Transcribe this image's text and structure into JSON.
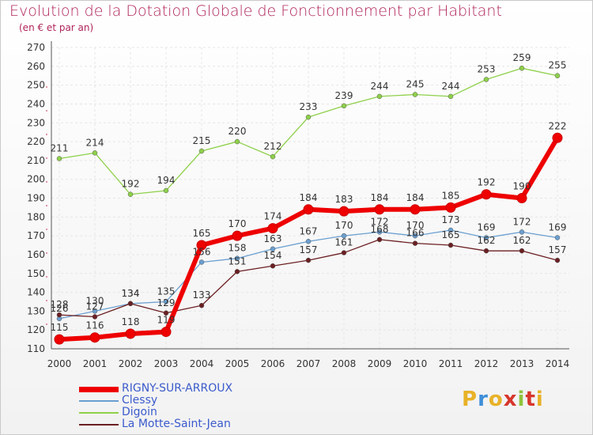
{
  "title": "Evolution de la Dotation Globale de Fonctionnement par Habitant",
  "subtitle": "(en € et par an)",
  "logo": {
    "text": "Proxiti",
    "letter_colors": [
      "#e8b228",
      "#3f8ed8",
      "#e8b228",
      "#d7362c",
      "#8fc43c",
      "#d7362c",
      "#e8b228"
    ]
  },
  "chart_data": {
    "type": "line",
    "title": "Evolution de la Dotation Globale de Fonctionnement par Habitant",
    "subtitle": "(en € et par an)",
    "x": [
      "2000",
      "2001",
      "2002",
      "2003",
      "2004",
      "2005",
      "2006",
      "2007",
      "2008",
      "2009",
      "2010",
      "2011",
      "2012",
      "2013",
      "2014"
    ],
    "ylim": [
      110,
      270
    ],
    "yticks": [
      110,
      120,
      130,
      140,
      150,
      160,
      170,
      180,
      190,
      200,
      210,
      220,
      230,
      240,
      250,
      260,
      270
    ],
    "grid": true,
    "legend_position": "bottom-left",
    "series": [
      {
        "name": "RIGNY-SUR-ARROUX",
        "color": "#ee0000",
        "values": [
          115,
          116,
          118,
          119,
          165,
          170,
          174,
          184,
          183,
          184,
          184,
          185,
          192,
          190,
          222
        ],
        "labels": [
          "115",
          "116",
          "118",
          "119",
          "165",
          "170",
          "174",
          "184",
          "183",
          "184",
          "184",
          "185",
          "192",
          "190",
          "222"
        ]
      },
      {
        "name": "Clessy",
        "color": "#6a9fd0",
        "values": [
          126,
          130,
          134,
          135,
          156,
          158,
          163,
          167,
          170,
          172,
          170,
          173,
          169,
          172,
          169
        ],
        "labels": [
          "126",
          "130",
          "134",
          "135",
          "156",
          "158",
          "163",
          "167",
          "170",
          "172",
          "170",
          "173",
          "169",
          "172",
          "169"
        ]
      },
      {
        "name": "Digoin",
        "color": "#8ed04a",
        "values": [
          211,
          214,
          192,
          194,
          215,
          220,
          212,
          233,
          239,
          244,
          245,
          244,
          253,
          259,
          255
        ],
        "labels": [
          "211",
          "214",
          "192",
          "194",
          "215",
          "220",
          "212",
          "233",
          "239",
          "244",
          "245",
          "244",
          "253",
          "259",
          "255"
        ]
      },
      {
        "name": "La Motte-Saint-Jean",
        "color": "#6b1f22",
        "values": [
          128,
          127,
          134,
          129,
          133,
          151,
          154,
          157,
          161,
          168,
          166,
          165,
          162,
          162,
          157
        ],
        "labels": [
          "128",
          "127",
          "134",
          "129",
          "133",
          "151",
          "154",
          "157",
          "161",
          "168",
          "166",
          "165",
          "162",
          "162",
          "157"
        ]
      }
    ]
  }
}
